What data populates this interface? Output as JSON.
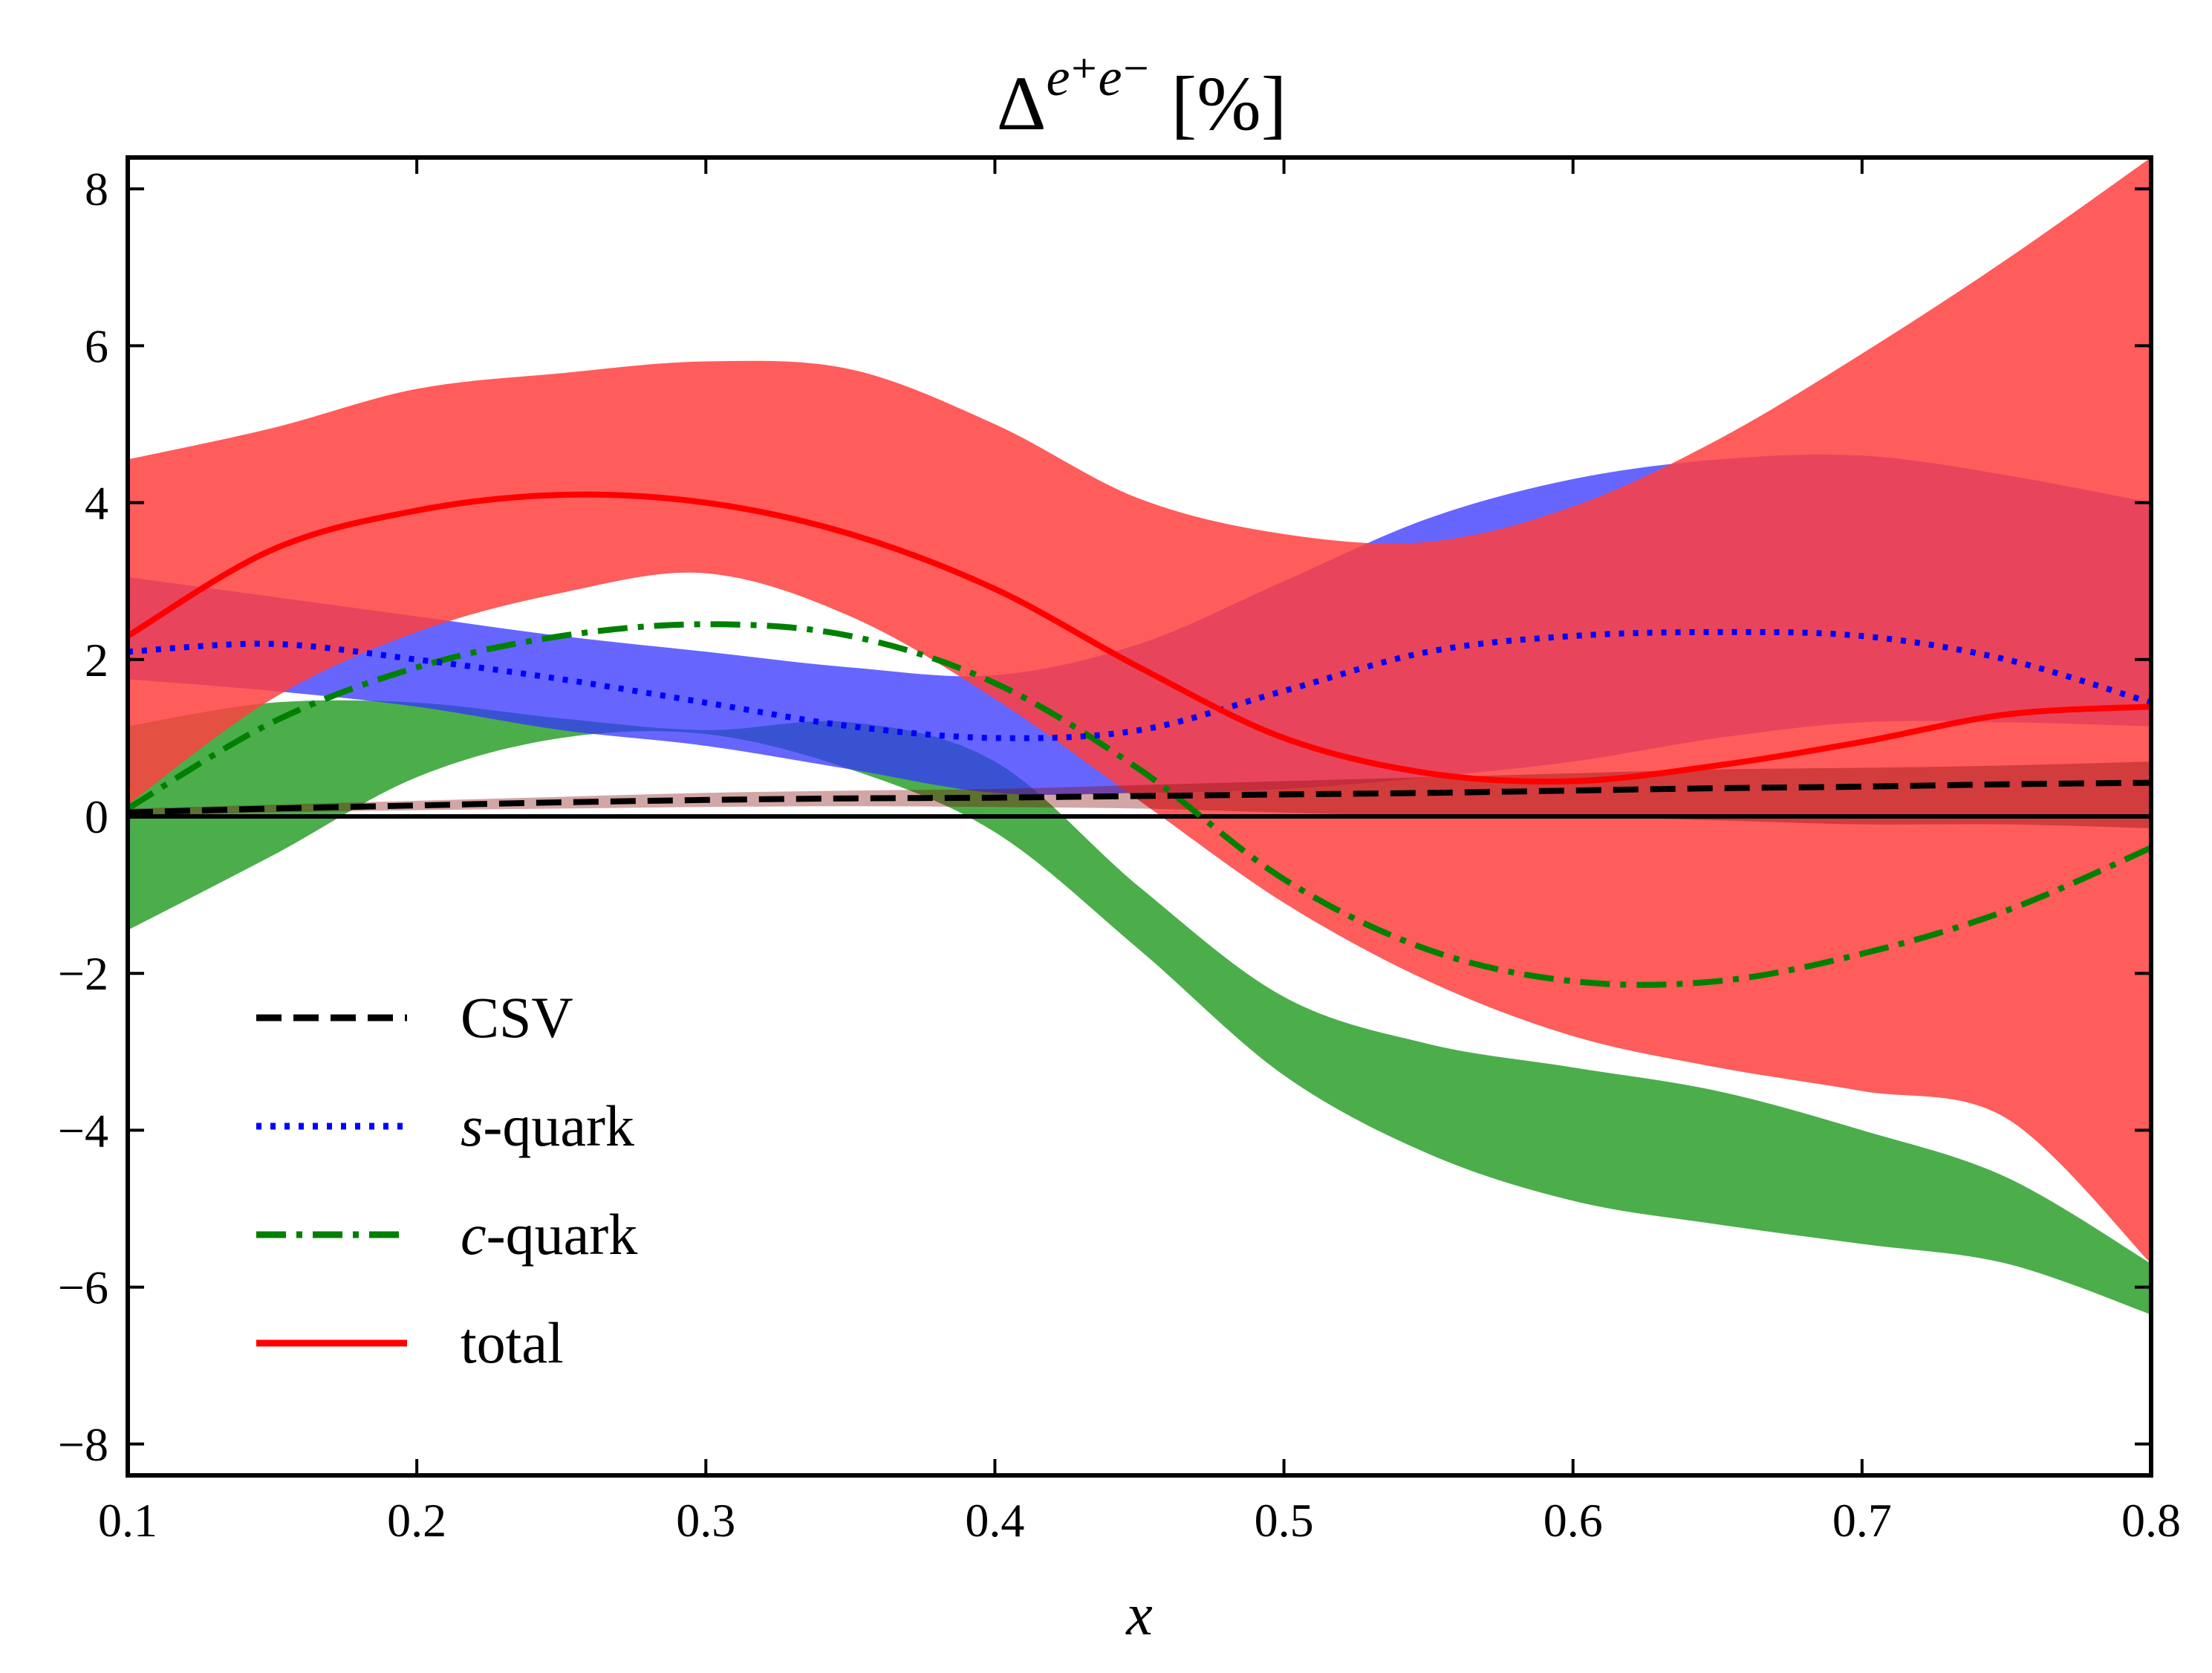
{
  "chart_data": {
    "type": "line",
    "title": {
      "base": "Δ",
      "superscript": "e⁺e⁻",
      "unit": "[%]"
    },
    "xlabel": "x",
    "ylabel": "",
    "xlim": [
      0.1,
      0.8
    ],
    "ylim": [
      -8.4,
      8.4
    ],
    "xticks": [
      0.1,
      0.2,
      0.3,
      0.4,
      0.5,
      0.6,
      0.7,
      0.8
    ],
    "xtick_labels": [
      "0.1",
      "0.2",
      "0.3",
      "0.4",
      "0.5",
      "0.6",
      "0.7",
      "0.8"
    ],
    "yticks": [
      -8,
      -6,
      -4,
      -2,
      0,
      2,
      4,
      6,
      8
    ],
    "ytick_labels": [
      "−8",
      "−6",
      "−4",
      "−2",
      "0",
      "2",
      "4",
      "6",
      "8"
    ],
    "grid": false,
    "legend_position": "lower-left",
    "x": [
      0.1,
      0.15,
      0.2,
      0.25,
      0.3,
      0.35,
      0.4,
      0.45,
      0.5,
      0.55,
      0.6,
      0.65,
      0.7,
      0.75,
      0.8
    ],
    "series": [
      {
        "name": "CSV",
        "style": "dashed",
        "color": "#000000",
        "band_color": "#800000",
        "band_opacity": 0.35,
        "values": [
          0.05,
          0.1,
          0.14,
          0.18,
          0.21,
          0.23,
          0.24,
          0.26,
          0.28,
          0.3,
          0.33,
          0.36,
          0.38,
          0.41,
          0.43
        ],
        "band_upper": [
          0.1,
          0.15,
          0.2,
          0.25,
          0.3,
          0.33,
          0.35,
          0.4,
          0.45,
          0.5,
          0.55,
          0.6,
          0.62,
          0.65,
          0.7
        ],
        "band_lower": [
          0.0,
          0.05,
          0.08,
          0.1,
          0.12,
          0.13,
          0.12,
          0.1,
          0.05,
          0.0,
          0.0,
          -0.05,
          -0.1,
          -0.1,
          -0.15
        ]
      },
      {
        "name": "s-quark",
        "style": "dotted",
        "color": "#0000ff",
        "band_color": "#3333ff",
        "band_opacity": 0.75,
        "values": [
          2.1,
          2.2,
          2.0,
          1.75,
          1.45,
          1.15,
          1.0,
          1.1,
          1.6,
          2.1,
          2.3,
          2.35,
          2.3,
          2.0,
          1.45
        ],
        "band_upper": [
          3.05,
          2.8,
          2.55,
          2.3,
          2.1,
          1.9,
          1.8,
          2.2,
          3.0,
          3.8,
          4.3,
          4.55,
          4.6,
          4.35,
          4.0
        ],
        "band_lower": [
          1.75,
          1.6,
          1.4,
          1.1,
          0.9,
          0.6,
          0.3,
          0.3,
          0.35,
          0.5,
          0.7,
          1.0,
          1.2,
          1.2,
          1.15
        ]
      },
      {
        "name": "c-quark",
        "style": "dashdot",
        "color": "#008000",
        "band_color": "#2ca02c",
        "band_opacity": 0.85,
        "values": [
          0.1,
          1.2,
          1.9,
          2.3,
          2.45,
          2.3,
          1.7,
          0.6,
          -0.8,
          -1.7,
          -2.1,
          -2.1,
          -1.75,
          -1.2,
          -0.4
        ],
        "band_upper": [
          1.15,
          1.45,
          1.45,
          1.25,
          1.1,
          1.2,
          0.7,
          -0.9,
          -2.3,
          -2.9,
          -3.2,
          -3.5,
          -4.0,
          -4.6,
          -5.7
        ],
        "band_lower": [
          -1.45,
          -0.5,
          0.5,
          1.0,
          1.05,
          0.6,
          -0.2,
          -1.7,
          -3.3,
          -4.3,
          -4.9,
          -5.2,
          -5.45,
          -5.7,
          -6.35
        ]
      },
      {
        "name": "total",
        "style": "solid",
        "color": "#ff0000",
        "band_color": "#ff4040",
        "band_opacity": 0.85,
        "values": [
          2.3,
          3.4,
          3.9,
          4.1,
          4.0,
          3.6,
          2.9,
          1.9,
          1.0,
          0.55,
          0.45,
          0.65,
          0.95,
          1.3,
          1.4
        ],
        "band_upper": [
          4.55,
          4.95,
          5.45,
          5.65,
          5.8,
          5.7,
          5.0,
          4.05,
          3.6,
          3.5,
          3.95,
          4.8,
          5.9,
          7.1,
          8.4
        ],
        "band_lower": [
          0.15,
          1.5,
          2.35,
          2.85,
          3.1,
          2.55,
          1.5,
          0.2,
          -1.1,
          -2.1,
          -2.8,
          -3.2,
          -3.5,
          -3.85,
          -5.7
        ]
      }
    ],
    "reference_line": {
      "y": 0,
      "color": "#000000"
    },
    "series_labels": [
      {
        "italic": "",
        "text": "CSV"
      },
      {
        "italic": "s",
        "text": "-quark"
      },
      {
        "italic": "c",
        "text": "-quark"
      },
      {
        "italic": "",
        "text": "total"
      }
    ]
  }
}
